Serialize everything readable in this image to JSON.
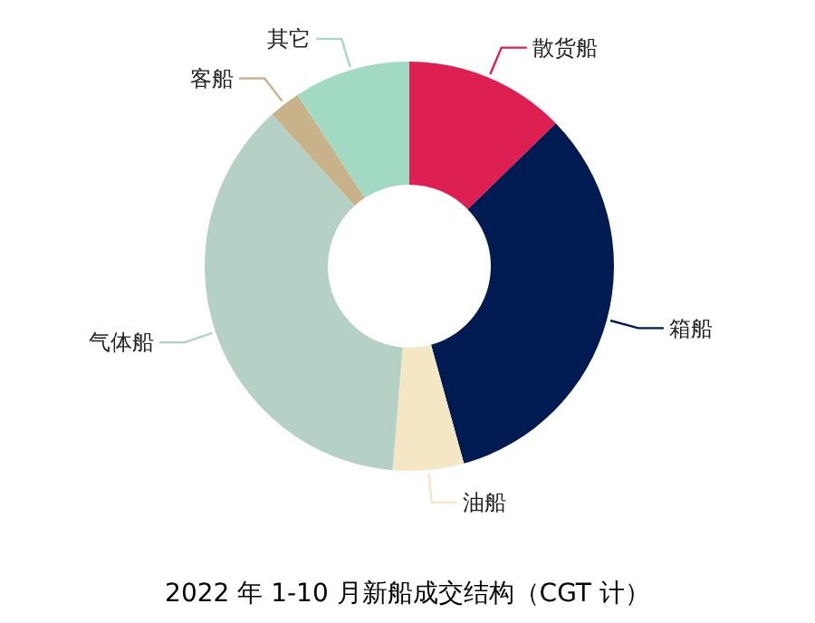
{
  "chart_data": {
    "type": "donut",
    "title": "2022 年 1-10 月新船成交结构（CGT 计）",
    "categories": [
      "散货船",
      "箱船",
      "油船",
      "气体船",
      "客船",
      "其它"
    ],
    "values": [
      12.7,
      33.0,
      5.6,
      37.0,
      2.5,
      9.2
    ],
    "colors": [
      "#de1f52",
      "#001a52",
      "#f5e6c4",
      "#b5d1c6",
      "#c8b28a",
      "#a1d9c2"
    ]
  }
}
